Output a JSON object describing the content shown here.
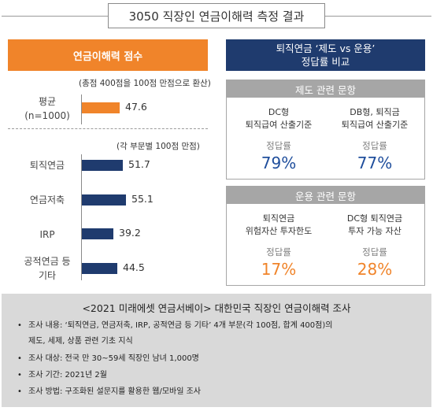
{
  "title": "3050 직장인 연금이해력 측정 결과",
  "left_header": "연금이해력 점수",
  "right_header": {
    "line1": "퇴직연금 ‘제도 vs 운용’",
    "line2": "정답률 비교"
  },
  "avg_note": "(총점 400점을 100점 만점으로 환산)",
  "avg_label": {
    "line1": "평균",
    "line2": "(n=1000)"
  },
  "avg_value": "47.6",
  "part_note": "(각 부문별 100점 만점)",
  "colors": {
    "orange": "#f0842a",
    "navy": "#1f3b6e",
    "gray": "#a6a6a6",
    "blue_text": "#1f4e9c"
  },
  "chart_data": {
    "type": "bar",
    "categories": [
      "평균 (n=1000)",
      "퇴직연금",
      "연금저축",
      "IRP",
      "공적연금 등 기타"
    ],
    "values": [
      47.6,
      51.7,
      55.1,
      39.2,
      44.5
    ],
    "value_labels": [
      "47.6",
      "51.7",
      "55.1",
      "39.2",
      "44.5"
    ],
    "bar_colors": [
      "#f0842a",
      "#1f3b6e",
      "#1f3b6e",
      "#1f3b6e",
      "#1f3b6e"
    ],
    "orientation": "horizontal",
    "xlim": [
      0,
      100
    ]
  },
  "bar_labels": [
    {
      "line1": "퇴직연금",
      "line2": ""
    },
    {
      "line1": "연금저축",
      "line2": ""
    },
    {
      "line1": "IRP",
      "line2": ""
    },
    {
      "line1": "공적연금 등",
      "line2": "기타"
    }
  ],
  "card_system": {
    "header": "제도 관련 문항",
    "items": [
      {
        "line1": "DC형",
        "line2": "퇴직급여 산출기준",
        "sub": "정답률",
        "value": "79%"
      },
      {
        "line1": "DB형, 퇴직금",
        "line2": "퇴직급여 산출기준",
        "sub": "정답률",
        "value": "77%"
      }
    ]
  },
  "card_ops": {
    "header": "운용 관련 문항",
    "items": [
      {
        "line1": "퇴직연금",
        "line2": "위험자산 투자한도",
        "sub": "정답률",
        "value": "17%"
      },
      {
        "line1": "DC형 퇴직연금",
        "line2": "투자 가능 자산",
        "sub": "정답률",
        "value": "28%"
      }
    ]
  },
  "survey": {
    "title": "<2021 미래에셋 연금서베이> 대한민국 직장인 연금이해력 조사",
    "bullets": [
      {
        "line1": "조사 내용: ‘퇴직연금, 연금저축, IRP, 공적연금 등 기타’ 4개 부문(각 100점, 합계 400점)의",
        "line2": "제도, 세제, 상품 관련 기초 지식"
      },
      {
        "line1": "조사 대상: 전국 만 30~59세 직장인 남녀 1,000명",
        "line2": ""
      },
      {
        "line1": "조사 기간: 2021년 2월",
        "line2": ""
      },
      {
        "line1": "조사 방법: 구조화된 설문지를 활용한 웹/모바일 조사",
        "line2": ""
      }
    ],
    "bullet_char": "•"
  }
}
